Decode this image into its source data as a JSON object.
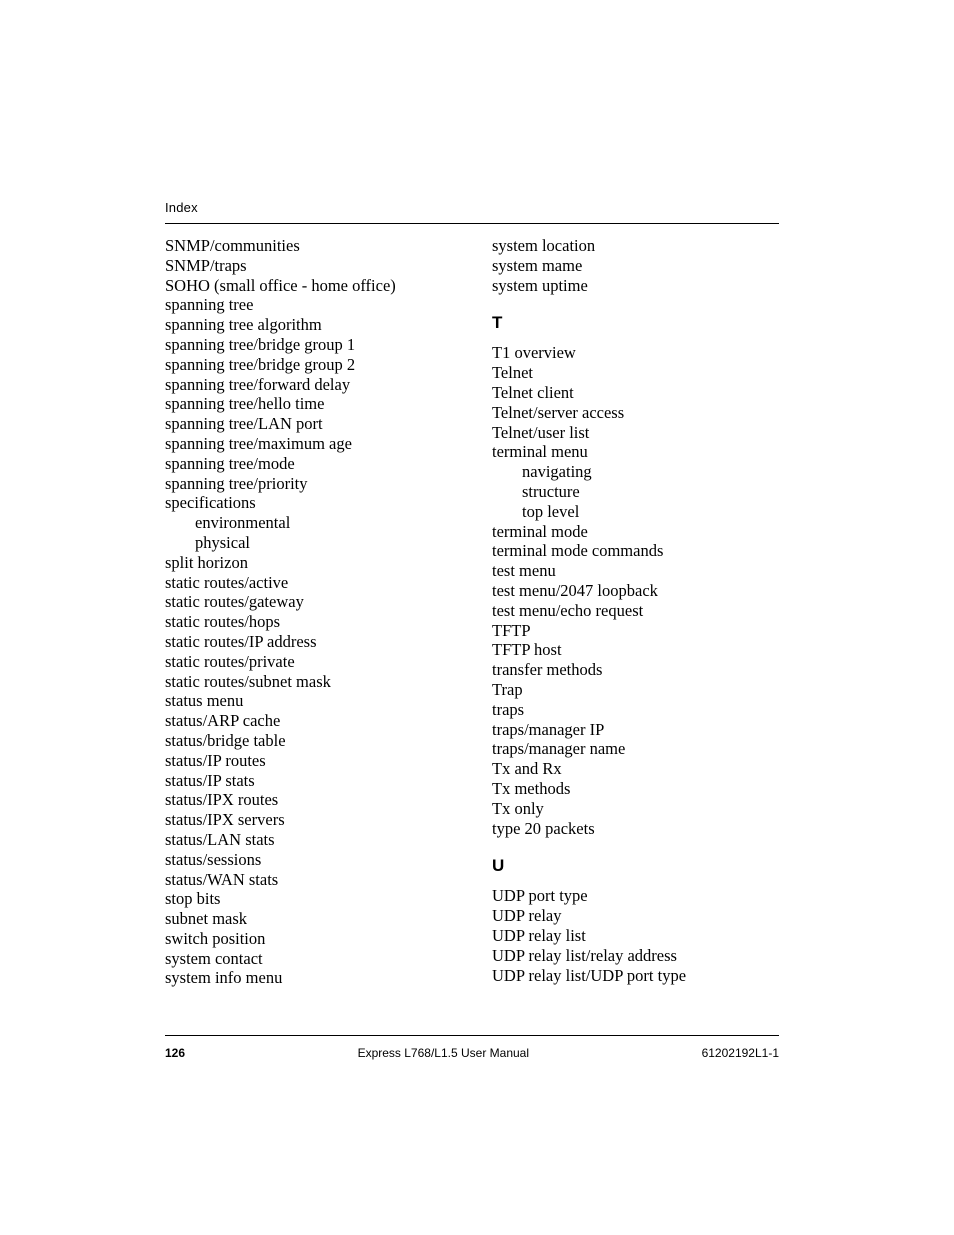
{
  "header": {
    "label": "Index"
  },
  "left_column": [
    {
      "text": "SNMP/communities",
      "indent": 0
    },
    {
      "text": "SNMP/traps",
      "indent": 0
    },
    {
      "text": "SOHO (small office - home office)",
      "indent": 0
    },
    {
      "text": "spanning tree",
      "indent": 0
    },
    {
      "text": "spanning tree algorithm",
      "indent": 0
    },
    {
      "text": "spanning tree/bridge group 1",
      "indent": 0
    },
    {
      "text": "spanning tree/bridge group 2",
      "indent": 0
    },
    {
      "text": "spanning tree/forward delay",
      "indent": 0
    },
    {
      "text": "spanning tree/hello time",
      "indent": 0
    },
    {
      "text": "spanning tree/LAN port",
      "indent": 0
    },
    {
      "text": "spanning tree/maximum age",
      "indent": 0
    },
    {
      "text": "spanning tree/mode",
      "indent": 0
    },
    {
      "text": "spanning tree/priority",
      "indent": 0
    },
    {
      "text": "specifications",
      "indent": 0
    },
    {
      "text": "environmental",
      "indent": 1
    },
    {
      "text": "physical",
      "indent": 1
    },
    {
      "text": "split horizon",
      "indent": 0
    },
    {
      "text": "static routes/active",
      "indent": 0
    },
    {
      "text": "static routes/gateway",
      "indent": 0
    },
    {
      "text": "static routes/hops",
      "indent": 0
    },
    {
      "text": "static routes/IP address",
      "indent": 0
    },
    {
      "text": "static routes/private",
      "indent": 0
    },
    {
      "text": "static routes/subnet mask",
      "indent": 0
    },
    {
      "text": "status menu",
      "indent": 0
    },
    {
      "text": "status/ARP cache",
      "indent": 0
    },
    {
      "text": "status/bridge table",
      "indent": 0
    },
    {
      "text": "status/IP routes",
      "indent": 0
    },
    {
      "text": "status/IP stats",
      "indent": 0
    },
    {
      "text": "status/IPX routes",
      "indent": 0
    },
    {
      "text": "status/IPX servers",
      "indent": 0
    },
    {
      "text": "status/LAN stats",
      "indent": 0
    },
    {
      "text": "status/sessions",
      "indent": 0
    },
    {
      "text": "status/WAN stats",
      "indent": 0
    },
    {
      "text": "stop bits",
      "indent": 0
    },
    {
      "text": "subnet mask",
      "indent": 0
    },
    {
      "text": "switch position",
      "indent": 0
    },
    {
      "text": "system contact",
      "indent": 0
    },
    {
      "text": "system info menu",
      "indent": 0
    }
  ],
  "right_column": [
    {
      "type": "entry",
      "text": "system location",
      "indent": 0
    },
    {
      "type": "entry",
      "text": "system mame",
      "indent": 0
    },
    {
      "type": "entry",
      "text": "system uptime",
      "indent": 0
    },
    {
      "type": "heading",
      "text": "T"
    },
    {
      "type": "entry",
      "text": "T1 overview",
      "indent": 0
    },
    {
      "type": "entry",
      "text": "Telnet",
      "indent": 0
    },
    {
      "type": "entry",
      "text": "Telnet client",
      "indent": 0
    },
    {
      "type": "entry",
      "text": "Telnet/server access",
      "indent": 0
    },
    {
      "type": "entry",
      "text": "Telnet/user list",
      "indent": 0
    },
    {
      "type": "entry",
      "text": "terminal menu",
      "indent": 0
    },
    {
      "type": "entry",
      "text": "navigating",
      "indent": 1
    },
    {
      "type": "entry",
      "text": "structure",
      "indent": 1
    },
    {
      "type": "entry",
      "text": "top level",
      "indent": 1
    },
    {
      "type": "entry",
      "text": "terminal mode",
      "indent": 0
    },
    {
      "type": "entry",
      "text": "terminal mode commands",
      "indent": 0
    },
    {
      "type": "entry",
      "text": "test menu",
      "indent": 0
    },
    {
      "type": "entry",
      "text": "test menu/2047 loopback",
      "indent": 0
    },
    {
      "type": "entry",
      "text": "test menu/echo request",
      "indent": 0
    },
    {
      "type": "entry",
      "text": "TFTP",
      "indent": 0
    },
    {
      "type": "entry",
      "text": "TFTP host",
      "indent": 0
    },
    {
      "type": "entry",
      "text": "transfer methods",
      "indent": 0
    },
    {
      "type": "entry",
      "text": "Trap",
      "indent": 0
    },
    {
      "type": "entry",
      "text": "traps",
      "indent": 0
    },
    {
      "type": "entry",
      "text": "traps/manager IP",
      "indent": 0
    },
    {
      "type": "entry",
      "text": "traps/manager name",
      "indent": 0
    },
    {
      "type": "entry",
      "text": "Tx and Rx",
      "indent": 0
    },
    {
      "type": "entry",
      "text": "Tx methods",
      "indent": 0
    },
    {
      "type": "entry",
      "text": "Tx only",
      "indent": 0
    },
    {
      "type": "entry",
      "text": "type 20 packets",
      "indent": 0
    },
    {
      "type": "heading",
      "text": "U"
    },
    {
      "type": "entry",
      "text": "UDP port type",
      "indent": 0
    },
    {
      "type": "entry",
      "text": "UDP relay",
      "indent": 0
    },
    {
      "type": "entry",
      "text": "UDP relay list",
      "indent": 0
    },
    {
      "type": "entry",
      "text": "UDP relay list/relay address",
      "indent": 0
    },
    {
      "type": "entry",
      "text": "UDP relay list/UDP port type",
      "indent": 0
    }
  ],
  "footer": {
    "page_number": "126",
    "center": "Express L768/L1.5 User Manual",
    "right": "61202192L1-1"
  }
}
